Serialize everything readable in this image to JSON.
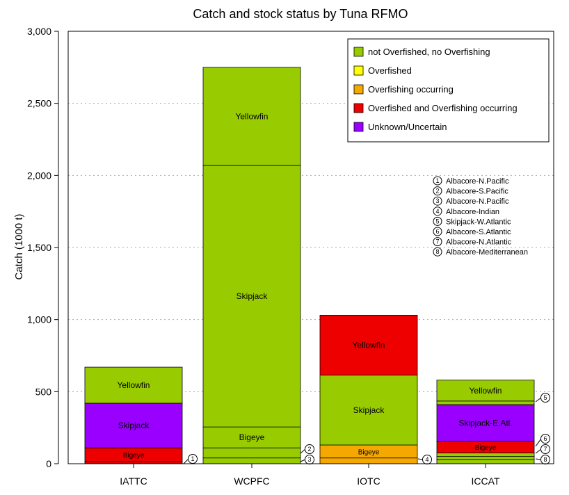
{
  "chart_data": {
    "type": "bar",
    "stacked": true,
    "title": "Catch and stock status by Tuna RFMO",
    "xlabel": "",
    "ylabel": "Catch (1000 t)",
    "ylim": [
      0,
      3000
    ],
    "yticks": [
      "0",
      "500",
      "1,000",
      "1,500",
      "2,000",
      "2,500",
      "3,000"
    ],
    "grid": "horizontal dotted",
    "legend_position": "top-right",
    "categories": [
      "IATTC",
      "WCPFC",
      "IOTC",
      "ICCAT"
    ],
    "status_colors": {
      "not Overfished, no Overfishing": "#99cc00",
      "Overfished": "#ffff00",
      "Overfishing occurring": "#f5a800",
      "Overfished and Overfishing occurring": "#ee0000",
      "Unknown/Uncertain": "#9900ff"
    },
    "legend": [
      "not Overfished, no Overfishing",
      "Overfished",
      "Overfishing occurring",
      "Overfished and Overfishing occurring",
      "Unknown/Uncertain"
    ],
    "stacks": [
      {
        "category": "IATTC",
        "segments": [
          {
            "label": "",
            "value": 15,
            "status": "Overfished and Overfishing occurring",
            "callout": "1"
          },
          {
            "label": "Bigeye",
            "value": 95,
            "status": "Overfished and Overfishing occurring"
          },
          {
            "label": "Skipjack",
            "value": 310,
            "status": "Unknown/Uncertain"
          },
          {
            "label": "Yellowfin",
            "value": 250,
            "status": "not Overfished, no Overfishing"
          }
        ]
      },
      {
        "category": "WCPFC",
        "segments": [
          {
            "label": "",
            "value": 40,
            "status": "not Overfished, no Overfishing",
            "callout": "3"
          },
          {
            "label": "",
            "value": 70,
            "status": "not Overfished, no Overfishing",
            "callout": "2"
          },
          {
            "label": "Bigeye",
            "value": 145,
            "status": "not Overfished, no Overfishing"
          },
          {
            "label": "Skipjack",
            "value": 1815,
            "status": "not Overfished, no Overfishing"
          },
          {
            "label": "Yellowfin",
            "value": 680,
            "status": "not Overfished, no Overfishing"
          }
        ]
      },
      {
        "category": "IOTC",
        "segments": [
          {
            "label": "",
            "value": 40,
            "status": "Overfishing occurring",
            "callout": "4"
          },
          {
            "label": "Bigeye",
            "value": 90,
            "status": "Overfishing occurring"
          },
          {
            "label": "Skipjack",
            "value": 485,
            "status": "not Overfished, no Overfishing"
          },
          {
            "label": "Yellowfin",
            "value": 415,
            "status": "Overfished and Overfishing occurring"
          }
        ]
      },
      {
        "category": "ICCAT",
        "segments": [
          {
            "label": "",
            "value": 30,
            "status": "not Overfished, no Overfishing",
            "callout": "8"
          },
          {
            "label": "",
            "value": 20,
            "status": "not Overfished, no Overfishing",
            "callout": "7"
          },
          {
            "label": "",
            "value": 25,
            "status": "not Overfished, no Overfishing",
            "callout": "6"
          },
          {
            "label": "Bigeye",
            "value": 80,
            "status": "Overfished and Overfishing occurring"
          },
          {
            "label": "Skipjack-E.Atl.",
            "value": 255,
            "status": "Unknown/Uncertain"
          },
          {
            "label": "",
            "value": 25,
            "status": "not Overfished, no Overfishing",
            "callout": "5"
          },
          {
            "label": "Yellowfin",
            "value": 145,
            "status": "not Overfished, no Overfishing"
          }
        ]
      }
    ],
    "callout_key": [
      {
        "num": "1",
        "text": "Albacore-N.Pacific"
      },
      {
        "num": "2",
        "text": "Albacore-S.Pacific"
      },
      {
        "num": "3",
        "text": "Albacore-N.Pacific"
      },
      {
        "num": "4",
        "text": "Albacore-Indian"
      },
      {
        "num": "5",
        "text": "Skipjack-W.Atlantic"
      },
      {
        "num": "6",
        "text": "Albacore-S.Atlantic"
      },
      {
        "num": "7",
        "text": "Albacore-N.Atlantic"
      },
      {
        "num": "8",
        "text": "Albacore-Mediterranean"
      }
    ]
  }
}
